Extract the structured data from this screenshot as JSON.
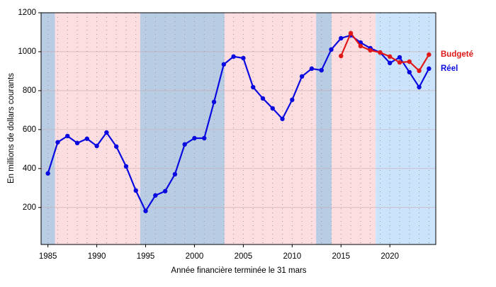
{
  "chart_data": {
    "type": "line",
    "x_label": "Année financière terminée le 31 mars",
    "y_label": "En millions de dollars courants",
    "xlim": [
      1984.3,
      2024.7
    ],
    "xticks": [
      1985,
      1990,
      1995,
      2000,
      2005,
      2010,
      2015,
      2020
    ],
    "ylim": [
      10,
      1200
    ],
    "yticks": [
      200,
      400,
      600,
      800,
      1000,
      1200
    ],
    "grid": true,
    "shaded_periods": [
      {
        "start": 1984.3,
        "end": 1985.73,
        "color": "#b8cce4"
      },
      {
        "start": 1985.73,
        "end": 1994.44,
        "color": "#fcdde0"
      },
      {
        "start": 1994.44,
        "end": 2003.08,
        "color": "#b8cce4"
      },
      {
        "start": 2003.08,
        "end": 2012.45,
        "color": "#fcdde0"
      },
      {
        "start": 2012.45,
        "end": 2014.05,
        "color": "#b8cce4"
      },
      {
        "start": 2014.05,
        "end": 2018.55,
        "color": "#fcdde0"
      },
      {
        "start": 2018.55,
        "end": 2024.7,
        "color": "#cce4fb"
      }
    ],
    "series": [
      {
        "name": "Réel",
        "color": "#0a0ae0",
        "x": [
          1985,
          1986,
          1987,
          1988,
          1989,
          1990,
          1991,
          1992,
          1993,
          1994,
          1995,
          1996,
          1997,
          1998,
          1999,
          2000,
          2001,
          2002,
          2003,
          2004,
          2005,
          2006,
          2007,
          2008,
          2009,
          2010,
          2011,
          2012,
          2013,
          2014,
          2015,
          2016,
          2017,
          2018,
          2019,
          2020,
          2021,
          2022,
          2023,
          2024
        ],
        "values": [
          375,
          535,
          567,
          531,
          553,
          516,
          585,
          513,
          411,
          287,
          182,
          262,
          284,
          371,
          524,
          556,
          556,
          742,
          935,
          975,
          967,
          818,
          760,
          709,
          655,
          753,
          873,
          913,
          905,
          1011,
          1069,
          1084,
          1047,
          1018,
          996,
          942,
          971,
          895,
          818,
          913
        ]
      },
      {
        "name": "Budgeté",
        "color": "#e01818",
        "x": [
          2015,
          2016,
          2017,
          2018,
          2019,
          2020,
          2021,
          2022,
          2023,
          2024
        ],
        "values": [
          978,
          1095,
          1029,
          1007,
          996,
          975,
          945,
          949,
          902,
          985
        ]
      }
    ]
  }
}
